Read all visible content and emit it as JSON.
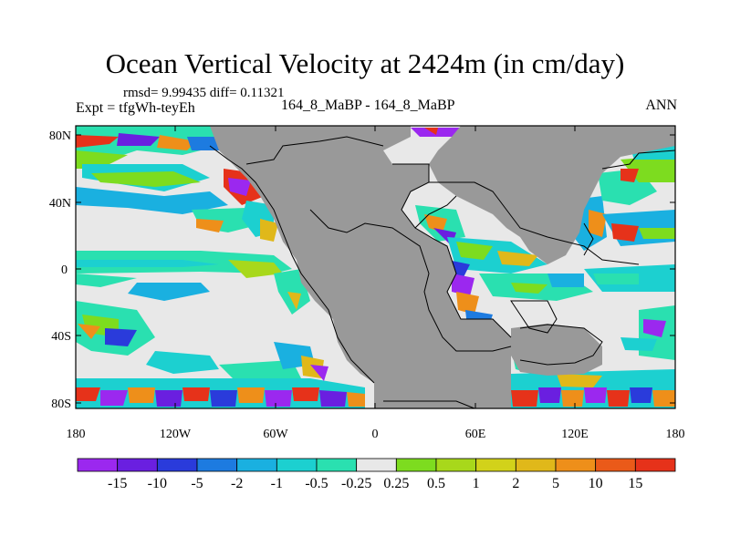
{
  "header": {
    "title": "Ocean Vertical Velocity at 2424m (in cm/day)",
    "stats": "rmsd= 9.99435 diff= 0.11321",
    "expt": "Expt = tfgWh-teyEh",
    "case": "164_8_MaBP - 164_8_MaBP",
    "season": "ANN"
  },
  "map": {
    "land_color": "#999999",
    "no_change_color": "#e8e8e8",
    "lat_labels": [
      "80N",
      "40N",
      "0",
      "40S",
      "80S"
    ],
    "lon_labels": [
      "180",
      "120W",
      "60W",
      "0",
      "60E",
      "120E",
      "180"
    ]
  },
  "colorbar": {
    "colors": [
      "#9b28ef",
      "#6a1fe0",
      "#2a3bdb",
      "#1d7be0",
      "#1ab0e0",
      "#1cd0d0",
      "#2ae0b0",
      "#e8e8e8",
      "#7ddc1f",
      "#a8d81b",
      "#d2d21a",
      "#e0b81a",
      "#ee8f1a",
      "#ea5a19",
      "#e6321a"
    ],
    "labels": [
      "-15",
      "-10",
      "-5",
      "-2",
      "-1",
      "-0.5",
      "-0.25",
      "0.25",
      "0.5",
      "1",
      "2",
      "5",
      "10",
      "15"
    ]
  }
}
